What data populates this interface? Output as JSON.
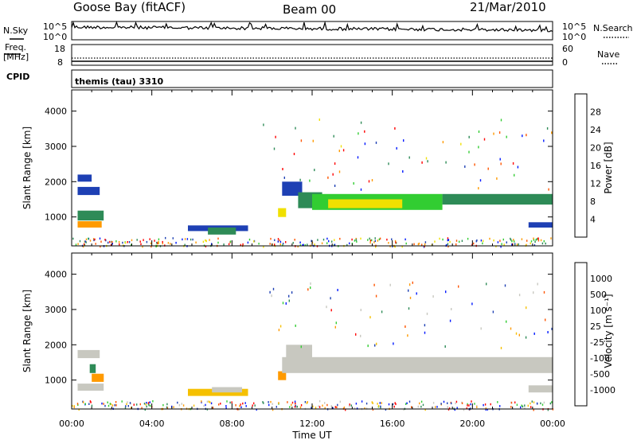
{
  "header": {
    "station": "Goose Bay (fitACF)",
    "beam": "Beam 00",
    "date": "21/Mar/2010"
  },
  "strip": {
    "nsky_label": "N.Sky",
    "nsearch_label": "N.Search",
    "freq_label_1": "Freq.",
    "freq_label_2": "[MHz]",
    "nave_label": "Nave",
    "cpid_label": "CPID",
    "cpid_text": "themis (tau) 3310",
    "noise_ticks_left": [
      "10^5",
      "10^0"
    ],
    "noise_ticks_right": [
      "10^5",
      "10^0"
    ],
    "freq_ticks": [
      "18",
      "8"
    ],
    "nave_ticks": [
      "60",
      "0"
    ]
  },
  "chart_data": [
    {
      "type": "heatmap",
      "panel": "power",
      "xlabel": "",
      "ylabel": "Slant Range [km]",
      "x_ticks": [
        "00:00",
        "04:00",
        "08:00",
        "12:00",
        "16:00",
        "20:00",
        "00:00"
      ],
      "x_range_hours": [
        0,
        24
      ],
      "y_range_km": [
        180,
        4600
      ],
      "y_ticks": [
        1000,
        2000,
        3000,
        4000
      ],
      "colorbar": {
        "label": "Power [dB]",
        "ticks": [
          "28",
          "24",
          "20",
          "16",
          "12",
          "8",
          "4"
        ],
        "colors": [
          "#0018ff",
          "#1e40b4",
          "#2e8b57",
          "#32cd32",
          "#f0e000",
          "#ff9a00",
          "#ff5500",
          "#ff0000"
        ]
      },
      "regions": [
        {
          "x": [
            0.3,
            1.5
          ],
          "y": [
            700,
            880
          ],
          "color": "#ff9a00"
        },
        {
          "x": [
            0.3,
            1.6
          ],
          "y": [
            900,
            1180
          ],
          "color": "#2e8b57"
        },
        {
          "x": [
            0.3,
            1.4
          ],
          "y": [
            1620,
            1850
          ],
          "color": "#1e40b4"
        },
        {
          "x": [
            0.3,
            1.0
          ],
          "y": [
            2000,
            2200
          ],
          "color": "#1e40b4"
        },
        {
          "x": [
            5.8,
            8.8
          ],
          "y": [
            600,
            760
          ],
          "color": "#1e40b4"
        },
        {
          "x": [
            6.8,
            8.2
          ],
          "y": [
            500,
            700
          ],
          "color": "#2e8b57"
        },
        {
          "x": [
            10.3,
            10.7
          ],
          "y": [
            1000,
            1250
          ],
          "color": "#f0e000"
        },
        {
          "x": [
            10.5,
            11.5
          ],
          "y": [
            1600,
            2000
          ],
          "color": "#1e40b4"
        },
        {
          "x": [
            11.3,
            12.5
          ],
          "y": [
            1250,
            1700
          ],
          "color": "#2e8b57"
        },
        {
          "x": [
            12.0,
            18.5
          ],
          "y": [
            1200,
            1650
          ],
          "color": "#32cd32"
        },
        {
          "x": [
            12.8,
            16.5
          ],
          "y": [
            1250,
            1500
          ],
          "color": "#f0e000"
        },
        {
          "x": [
            18.5,
            24.0
          ],
          "y": [
            1350,
            1650
          ],
          "color": "#2e8b57"
        },
        {
          "x": [
            22.8,
            24.0
          ],
          "y": [
            700,
            850
          ],
          "color": "#1e40b4"
        }
      ]
    },
    {
      "type": "heatmap",
      "panel": "velocity",
      "xlabel": "Time UT",
      "ylabel": "Slant Range [km]",
      "x_ticks": [
        "00:00",
        "04:00",
        "08:00",
        "12:00",
        "16:00",
        "20:00",
        "00:00"
      ],
      "x_range_hours": [
        0,
        24
      ],
      "y_range_km": [
        180,
        4600
      ],
      "y_ticks": [
        1000,
        2000,
        3000,
        4000
      ],
      "colorbar": {
        "label": "Velocity [m s⁻¹]",
        "ticks": [
          "1000",
          "500",
          "100",
          "25",
          "-25",
          "-100",
          "-500",
          "-1000"
        ],
        "colors": [
          "#ff0000",
          "#ff5500",
          "#ff9a00",
          "#f5c000",
          "#c8c8c0",
          "#32cd32",
          "#2e8b57",
          "#1e40b4",
          "#0018ff"
        ]
      },
      "regions": [
        {
          "x": [
            0.3,
            1.4
          ],
          "y": [
            1620,
            1850
          ],
          "color": "#c8c8c0"
        },
        {
          "x": [
            0.3,
            1.6
          ],
          "y": [
            700,
            900
          ],
          "color": "#c8c8c0"
        },
        {
          "x": [
            1.0,
            1.6
          ],
          "y": [
            950,
            1180
          ],
          "color": "#ff9a00"
        },
        {
          "x": [
            0.9,
            1.2
          ],
          "y": [
            1200,
            1450
          ],
          "color": "#2e8b57"
        },
        {
          "x": [
            5.8,
            8.8
          ],
          "y": [
            550,
            750
          ],
          "color": "#f5c000"
        },
        {
          "x": [
            7.0,
            8.5
          ],
          "y": [
            650,
            800
          ],
          "color": "#c8c8c0"
        },
        {
          "x": [
            10.3,
            10.7
          ],
          "y": [
            1000,
            1250
          ],
          "color": "#ff9a00"
        },
        {
          "x": [
            10.5,
            24.0
          ],
          "y": [
            1200,
            1650
          ],
          "color": "#c8c8c0"
        },
        {
          "x": [
            10.7,
            12.0
          ],
          "y": [
            1600,
            2000
          ],
          "color": "#c8c8c0"
        },
        {
          "x": [
            22.8,
            24.0
          ],
          "y": [
            650,
            850
          ],
          "color": "#c8c8c0"
        }
      ]
    }
  ]
}
